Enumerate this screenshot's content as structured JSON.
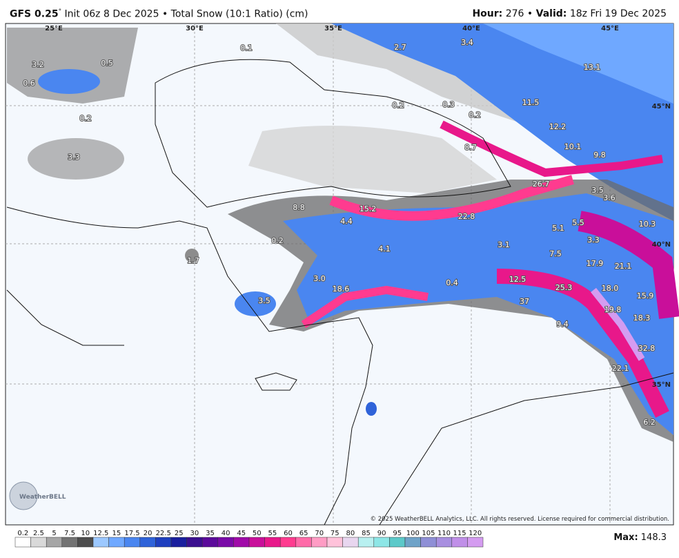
{
  "header": {
    "model": "GFS 0.25",
    "degree": "°",
    "run": "Init 06z 8 Dec 2025",
    "separator": "•",
    "product": "Total Snow (10:1 Ratio) (cm)",
    "hour_label": "Hour:",
    "hour": "276",
    "valid_label": "Valid:",
    "valid": "18z Fri 19 Dec 2025"
  },
  "map": {
    "lon_labels": [
      "25°E",
      "30°E",
      "35°E",
      "40°E",
      "45°E"
    ],
    "lat_labels": [
      "45°N",
      "40°N",
      "35°N"
    ],
    "point_labels": [
      "3.2",
      "0.5",
      "0.6",
      "0.1",
      "2.7",
      "3.4",
      "13.1",
      "11.5",
      "0.2",
      "0.3",
      "0.2",
      "0.2",
      "12.2",
      "10.1",
      "9.8",
      "3.3",
      "8.7",
      "26.7",
      "3.5",
      "3.6",
      "8.8",
      "15.2",
      "4.4",
      "22.8",
      "10.3",
      "5.1",
      "5.5",
      "0.2",
      "3.3",
      "3.1",
      "4.1",
      "7.5",
      "17.9",
      "21.1",
      "1.7",
      "3.0",
      "0.4",
      "12.5",
      "18.6",
      "25.3",
      "18.0",
      "15.9",
      "3.5",
      "37",
      "19.8",
      "18.3",
      "9.4",
      "32.8",
      "22.1",
      "6.2"
    ],
    "logo": "WeatherBELL",
    "copyright": "© 2025 WeatherBELL Analytics, LLC. All rights reserved. License required for commercial distribution."
  },
  "legend": {
    "ticks": [
      0.2,
      2.5,
      5,
      7.5,
      10,
      12.5,
      15,
      17.5,
      20,
      22.5,
      25,
      30,
      35,
      40,
      45,
      50,
      55,
      60,
      65,
      70,
      75,
      80,
      85,
      90,
      95,
      100,
      105,
      110,
      115,
      120
    ],
    "colors": [
      "#ffffff",
      "#d9d9d9",
      "#a6a6a6",
      "#737373",
      "#4d4d4d",
      "#9cc8ff",
      "#6fa8ff",
      "#4a86f0",
      "#2f63d9",
      "#1e3fbf",
      "#1a1f9e",
      "#3b0f8f",
      "#5b0a9a",
      "#7a0aa8",
      "#a00aa8",
      "#c90f9a",
      "#e8188a",
      "#ff3b8f",
      "#ff6aa8",
      "#ff9cc4",
      "#ffc2da",
      "#e8d6ef",
      "#b8f0f0",
      "#8de6e6",
      "#5cc9c9",
      "#6fa3c8",
      "#8f8fd6",
      "#a88fe0",
      "#c08fe8",
      "#d49cf0"
    ]
  },
  "max": {
    "label": "Max:",
    "value": "148.3"
  }
}
